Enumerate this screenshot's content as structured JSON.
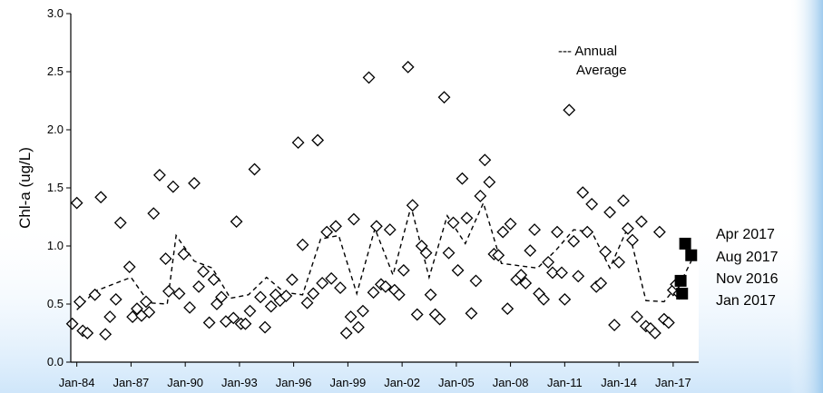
{
  "chart_data": {
    "type": "scatter",
    "title": "",
    "xlabel": "",
    "ylabel": "Chl-a (ug/L)",
    "ylim": [
      0,
      3.0
    ],
    "xlim": [
      "1983-09-01",
      "2018-06-01"
    ],
    "yticks": [
      "0.0",
      "0.5",
      "1.0",
      "1.5",
      "2.0",
      "2.5",
      "3.0"
    ],
    "xticks": [
      "Jan-84",
      "Jan-87",
      "Jan-90",
      "Jan-93",
      "Jan-96",
      "Jan-99",
      "Jan-02",
      "Jan-05",
      "Jan-08",
      "Jan-11",
      "Jan-14",
      "Jan-17"
    ],
    "grid": false,
    "legend": {
      "position": "top-right",
      "entries": [
        "--- Annual",
        "Average"
      ]
    },
    "series": [
      {
        "marker": "open-diamond",
        "points": [
          [
            "1983-10-01",
            0.33
          ],
          [
            "1984-01-01",
            1.37
          ],
          [
            "1984-03-01",
            0.52
          ],
          [
            "1984-05-01",
            0.27
          ],
          [
            "1984-08-01",
            0.25
          ],
          [
            "1985-01-01",
            0.58
          ],
          [
            "1985-05-01",
            1.42
          ],
          [
            "1985-08-01",
            0.24
          ],
          [
            "1985-11-01",
            0.39
          ],
          [
            "1986-03-01",
            0.54
          ],
          [
            "1986-06-01",
            1.2
          ],
          [
            "1986-12-01",
            0.82
          ],
          [
            "1987-02-01",
            0.39
          ],
          [
            "1987-05-01",
            0.46
          ],
          [
            "1987-08-01",
            0.4
          ],
          [
            "1987-11-01",
            0.52
          ],
          [
            "1988-01-01",
            0.43
          ],
          [
            "1988-04-01",
            1.28
          ],
          [
            "1988-08-01",
            1.61
          ],
          [
            "1988-12-01",
            0.89
          ],
          [
            "1989-02-01",
            0.61
          ],
          [
            "1989-05-01",
            1.51
          ],
          [
            "1989-09-01",
            0.59
          ],
          [
            "1989-12-01",
            0.93
          ],
          [
            "1990-04-01",
            0.47
          ],
          [
            "1990-07-01",
            1.54
          ],
          [
            "1990-10-01",
            0.65
          ],
          [
            "1991-01-01",
            0.78
          ],
          [
            "1991-05-01",
            0.34
          ],
          [
            "1991-08-01",
            0.71
          ],
          [
            "1991-10-01",
            0.5
          ],
          [
            "1992-01-01",
            0.56
          ],
          [
            "1992-04-01",
            0.35
          ],
          [
            "1992-09-01",
            0.38
          ],
          [
            "1992-11-01",
            1.21
          ],
          [
            "1993-02-01",
            0.33
          ],
          [
            "1993-05-01",
            0.33
          ],
          [
            "1993-08-01",
            0.44
          ],
          [
            "1993-11-01",
            1.66
          ],
          [
            "1994-03-01",
            0.56
          ],
          [
            "1994-06-01",
            0.3
          ],
          [
            "1994-10-01",
            0.48
          ],
          [
            "1995-01-01",
            0.58
          ],
          [
            "1995-04-01",
            0.53
          ],
          [
            "1995-08-01",
            0.57
          ],
          [
            "1995-12-01",
            0.71
          ],
          [
            "1996-04-01",
            1.89
          ],
          [
            "1996-07-01",
            1.01
          ],
          [
            "1996-10-01",
            0.51
          ],
          [
            "1997-02-01",
            0.59
          ],
          [
            "1997-05-01",
            1.91
          ],
          [
            "1997-08-01",
            0.68
          ],
          [
            "1997-11-01",
            1.12
          ],
          [
            "1998-02-01",
            0.72
          ],
          [
            "1998-05-01",
            1.17
          ],
          [
            "1998-08-01",
            0.64
          ],
          [
            "1998-12-01",
            0.25
          ],
          [
            "1999-03-01",
            0.39
          ],
          [
            "1999-05-01",
            1.23
          ],
          [
            "1999-08-01",
            0.3
          ],
          [
            "1999-11-01",
            0.44
          ],
          [
            "2000-03-01",
            2.45
          ],
          [
            "2000-06-01",
            0.6
          ],
          [
            "2000-08-01",
            1.17
          ],
          [
            "2000-11-01",
            0.67
          ],
          [
            "2001-02-01",
            0.65
          ],
          [
            "2001-05-01",
            1.14
          ],
          [
            "2001-08-01",
            0.62
          ],
          [
            "2001-11-01",
            0.58
          ],
          [
            "2002-02-01",
            0.79
          ],
          [
            "2002-05-01",
            2.54
          ],
          [
            "2002-08-01",
            1.35
          ],
          [
            "2002-11-01",
            0.41
          ],
          [
            "2003-02-01",
            1.0
          ],
          [
            "2003-05-01",
            0.94
          ],
          [
            "2003-08-01",
            0.58
          ],
          [
            "2003-11-01",
            0.41
          ],
          [
            "2004-02-01",
            0.37
          ],
          [
            "2004-05-01",
            2.28
          ],
          [
            "2004-08-01",
            0.94
          ],
          [
            "2004-11-01",
            1.2
          ],
          [
            "2005-02-01",
            0.79
          ],
          [
            "2005-05-01",
            1.58
          ],
          [
            "2005-08-01",
            1.24
          ],
          [
            "2005-11-01",
            0.42
          ],
          [
            "2006-02-01",
            0.7
          ],
          [
            "2006-05-01",
            1.43
          ],
          [
            "2006-08-01",
            1.74
          ],
          [
            "2006-11-01",
            1.55
          ],
          [
            "2007-02-01",
            0.93
          ],
          [
            "2007-05-01",
            0.92
          ],
          [
            "2007-08-01",
            1.12
          ],
          [
            "2007-11-01",
            0.46
          ],
          [
            "2008-01-01",
            1.19
          ],
          [
            "2008-05-01",
            0.71
          ],
          [
            "2008-08-01",
            0.75
          ],
          [
            "2008-11-01",
            0.68
          ],
          [
            "2009-02-01",
            0.96
          ],
          [
            "2009-05-01",
            1.14
          ],
          [
            "2009-08-01",
            0.59
          ],
          [
            "2009-11-01",
            0.54
          ],
          [
            "2010-02-01",
            0.86
          ],
          [
            "2010-05-01",
            0.77
          ],
          [
            "2010-08-01",
            1.12
          ],
          [
            "2010-11-01",
            0.77
          ],
          [
            "2011-01-01",
            0.54
          ],
          [
            "2011-04-01",
            2.17
          ],
          [
            "2011-07-01",
            1.04
          ],
          [
            "2011-10-01",
            0.74
          ],
          [
            "2012-01-01",
            1.46
          ],
          [
            "2012-04-01",
            1.12
          ],
          [
            "2012-07-01",
            1.36
          ],
          [
            "2012-10-01",
            0.65
          ],
          [
            "2013-01-01",
            0.68
          ],
          [
            "2013-04-01",
            0.95
          ],
          [
            "2013-07-01",
            1.29
          ],
          [
            "2013-10-01",
            0.32
          ],
          [
            "2014-01-01",
            0.86
          ],
          [
            "2014-04-01",
            1.39
          ],
          [
            "2014-07-01",
            1.15
          ],
          [
            "2014-10-01",
            1.05
          ],
          [
            "2015-01-01",
            0.39
          ],
          [
            "2015-04-01",
            1.21
          ],
          [
            "2015-07-01",
            0.31
          ],
          [
            "2015-10-01",
            0.29
          ],
          [
            "2016-01-01",
            0.25
          ],
          [
            "2016-04-01",
            1.12
          ],
          [
            "2016-07-01",
            0.37
          ],
          [
            "2016-10-01",
            0.34
          ],
          [
            "2017-01-01",
            0.62
          ],
          [
            "2017-03-01",
            0.67
          ],
          [
            "2017-05-01",
            0.59
          ]
        ]
      },
      {
        "marker": "dashed-line",
        "points": [
          [
            "1984-01-01",
            0.45
          ],
          [
            "1985-01-01",
            0.61
          ],
          [
            "1986-01-01",
            0.67
          ],
          [
            "1987-01-01",
            0.73
          ],
          [
            "1988-01-01",
            0.51
          ],
          [
            "1989-01-01",
            0.5
          ],
          [
            "1989-07-01",
            1.09
          ],
          [
            "1990-07-01",
            0.87
          ],
          [
            "1991-07-01",
            0.81
          ],
          [
            "1992-07-01",
            0.55
          ],
          [
            "1993-07-01",
            0.58
          ],
          [
            "1994-07-01",
            0.73
          ],
          [
            "1995-07-01",
            0.6
          ],
          [
            "1996-07-01",
            0.58
          ],
          [
            "1997-07-01",
            1.06
          ],
          [
            "1998-07-01",
            1.09
          ],
          [
            "1999-07-01",
            0.59
          ],
          [
            "2000-07-01",
            1.15
          ],
          [
            "2001-07-01",
            0.75
          ],
          [
            "2002-07-01",
            1.34
          ],
          [
            "2003-07-01",
            0.73
          ],
          [
            "2004-07-01",
            1.26
          ],
          [
            "2005-07-01",
            1.02
          ],
          [
            "2006-07-01",
            1.37
          ],
          [
            "2007-07-01",
            0.85
          ],
          [
            "2008-07-01",
            0.83
          ],
          [
            "2009-07-01",
            0.81
          ],
          [
            "2010-07-01",
            0.96
          ],
          [
            "2011-07-01",
            1.14
          ],
          [
            "2012-07-01",
            1.12
          ],
          [
            "2013-07-01",
            0.81
          ],
          [
            "2014-07-01",
            1.16
          ],
          [
            "2015-07-01",
            0.53
          ],
          [
            "2016-07-01",
            0.52
          ],
          [
            "2017-07-01",
            0.71
          ],
          [
            "2018-01-01",
            0.87
          ]
        ]
      },
      {
        "marker": "filled-square",
        "points": [
          [
            "2017-06-01",
            0.7
          ],
          [
            "2017-07-01",
            0.59
          ],
          [
            "2017-09-01",
            1.02
          ],
          [
            "2018-01-01",
            0.92
          ]
        ]
      }
    ],
    "annotations": [
      "Apr 2017",
      "Aug 2017",
      "Nov 2016",
      "Jan 2017"
    ]
  }
}
